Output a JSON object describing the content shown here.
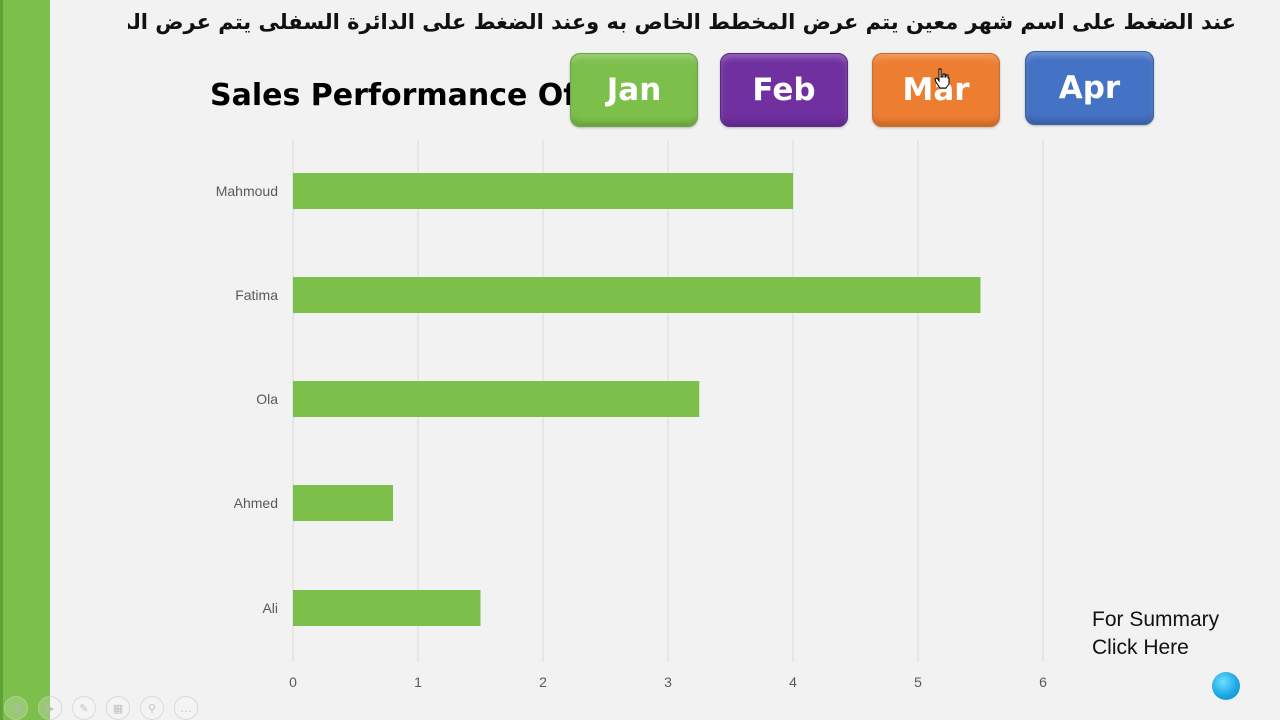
{
  "instruction_text": "عند الضغط على اسم شهر معين يتم عرض المخطط الخاص به وعند الضغط على الدائرة السفلى يتم عرض الملخص",
  "title": "Sales Performance Of",
  "months": [
    {
      "id": "jan",
      "label": "Jan",
      "color": "#7cc04b"
    },
    {
      "id": "feb",
      "label": "Feb",
      "color": "#7030a0"
    },
    {
      "id": "mar",
      "label": "Mar",
      "color": "#ed7d31"
    },
    {
      "id": "apr",
      "label": "Apr",
      "color": "#4472c4"
    }
  ],
  "summary": {
    "line1": "For Summary",
    "line2": "Click Here"
  },
  "colors": {
    "bar": "#7cc04b",
    "accent_bar": "#7cc04b",
    "gridline": "#d9d9d9",
    "summary_circle": "#1ea8e6"
  },
  "toolbar_icons": [
    "prev-icon",
    "next-icon",
    "pen-icon",
    "slides-icon",
    "zoom-icon",
    "more-icon"
  ],
  "chart_data": {
    "type": "bar",
    "orientation": "horizontal",
    "categories": [
      "Mahmoud",
      "Fatima",
      "Ola",
      "Ahmed",
      "Ali"
    ],
    "values": [
      4,
      5.5,
      3.25,
      0.8,
      1.5
    ],
    "xlim": [
      0,
      6
    ],
    "xticks": [
      0,
      1,
      2,
      3,
      4,
      5,
      6
    ],
    "grid": true,
    "title": "",
    "xlabel": "",
    "ylabel": ""
  }
}
